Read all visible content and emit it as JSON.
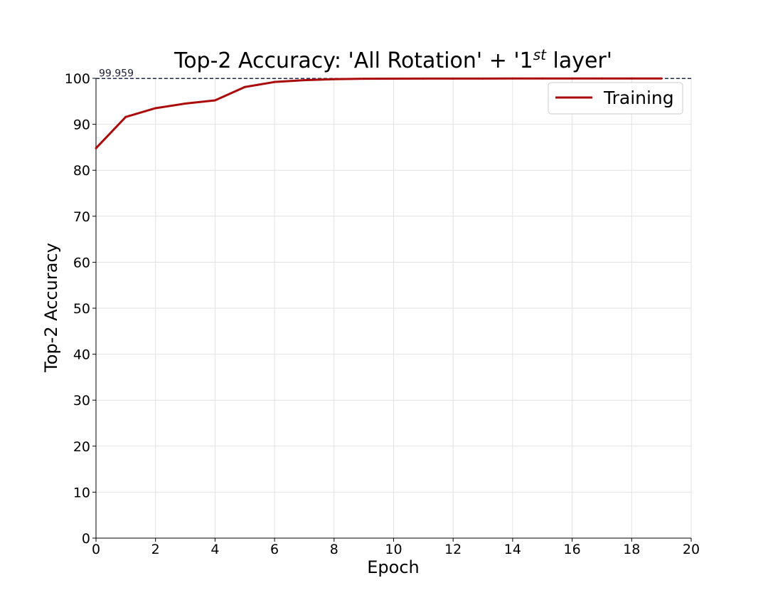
{
  "chart_data": {
    "type": "line",
    "title": "Top-2 Accuracy: 'All Rotation' + '1",
    "title_superscript": "st",
    "title_suffix": " layer'",
    "xlabel": "Epoch",
    "ylabel": "Top-2 Accuracy",
    "xlim": [
      0,
      20
    ],
    "ylim": [
      0,
      100
    ],
    "xticks": [
      0,
      2,
      4,
      6,
      8,
      10,
      12,
      14,
      16,
      18,
      20
    ],
    "yticks": [
      0,
      10,
      20,
      30,
      40,
      50,
      60,
      70,
      80,
      90,
      100
    ],
    "grid": true,
    "legend_position": "top-right",
    "series": [
      {
        "name": "Training",
        "color": "#aa0a0a",
        "x": [
          0,
          1,
          2,
          3,
          4,
          5,
          6,
          7,
          8,
          9,
          10,
          11,
          12,
          13,
          14,
          15,
          16,
          17,
          18,
          19
        ],
        "y": [
          84.8,
          91.6,
          93.5,
          94.5,
          95.2,
          98.1,
          99.2,
          99.6,
          99.8,
          99.9,
          99.93,
          99.94,
          99.95,
          99.95,
          99.96,
          99.96,
          99.96,
          99.96,
          99.96,
          99.96
        ]
      }
    ],
    "reference_line": {
      "y": 99.959,
      "label": "99.959",
      "color": "#1f2a55",
      "style": "dashed"
    }
  }
}
